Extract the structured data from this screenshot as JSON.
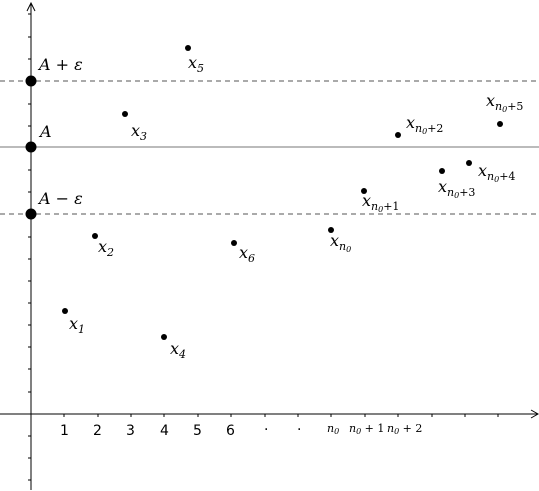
{
  "lines": {
    "upper": {
      "label_base": "A + ε",
      "style": "dashed"
    },
    "middle": {
      "label_base": "A",
      "style": "solid"
    },
    "lower": {
      "label_base": "A − ε",
      "style": "dashed"
    }
  },
  "ticks": [
    "1",
    "2",
    "3",
    "4",
    "5",
    "6",
    ".",
    ".",
    "n0",
    "n0 + 1",
    "n0 + 2"
  ],
  "points": [
    {
      "base": "x",
      "sub": "1"
    },
    {
      "base": "x",
      "sub": "2"
    },
    {
      "base": "x",
      "sub": "3"
    },
    {
      "base": "x",
      "sub": "4"
    },
    {
      "base": "x",
      "sub": "5"
    },
    {
      "base": "x",
      "sub": "6"
    },
    {
      "base": "x",
      "sub": "n0"
    },
    {
      "base": "x",
      "sub": "n0+1"
    },
    {
      "base": "x",
      "sub": "n0+2"
    },
    {
      "base": "x",
      "sub": "n0+3"
    },
    {
      "base": "x",
      "sub": "n0+4"
    },
    {
      "base": "x",
      "sub": "n0+5"
    }
  ]
}
